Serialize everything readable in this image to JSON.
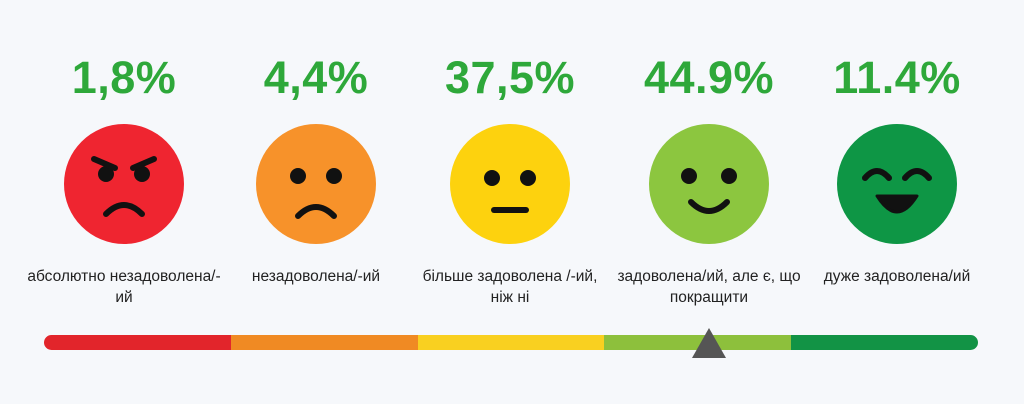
{
  "levels": [
    {
      "percent": "1,8%",
      "label": "абсолютно незадоволена/-ий",
      "face_color": "#ef2530",
      "bar_color": "#e2252b",
      "icon": "angry-face-icon"
    },
    {
      "percent": "4,4%",
      "label": "незадоволена/-ий",
      "face_color": "#f7922a",
      "bar_color": "#f08a23",
      "icon": "sad-face-icon"
    },
    {
      "percent": "37,5%",
      "label": "більше задоволена /-ий, ніж ні",
      "face_color": "#fdd20e",
      "bar_color": "#f9d020",
      "icon": "neutral-face-icon"
    },
    {
      "percent": "44.9%",
      "label": "задоволена/ий, але є, що покращити",
      "face_color": "#8cc63f",
      "bar_color": "#8dc03c",
      "icon": "smiling-face-icon"
    },
    {
      "percent": "11.4%",
      "label": "дуже задоволена/ий",
      "face_color": "#0e9645",
      "bar_color": "#129345",
      "icon": "grinning-face-icon"
    }
  ],
  "scale": {
    "marker_position": 0.71,
    "marker_color": "#555555",
    "icon": "triangle-marker-icon"
  },
  "colors": {
    "percent_text": "#2ea83a",
    "feature": "#111111"
  }
}
